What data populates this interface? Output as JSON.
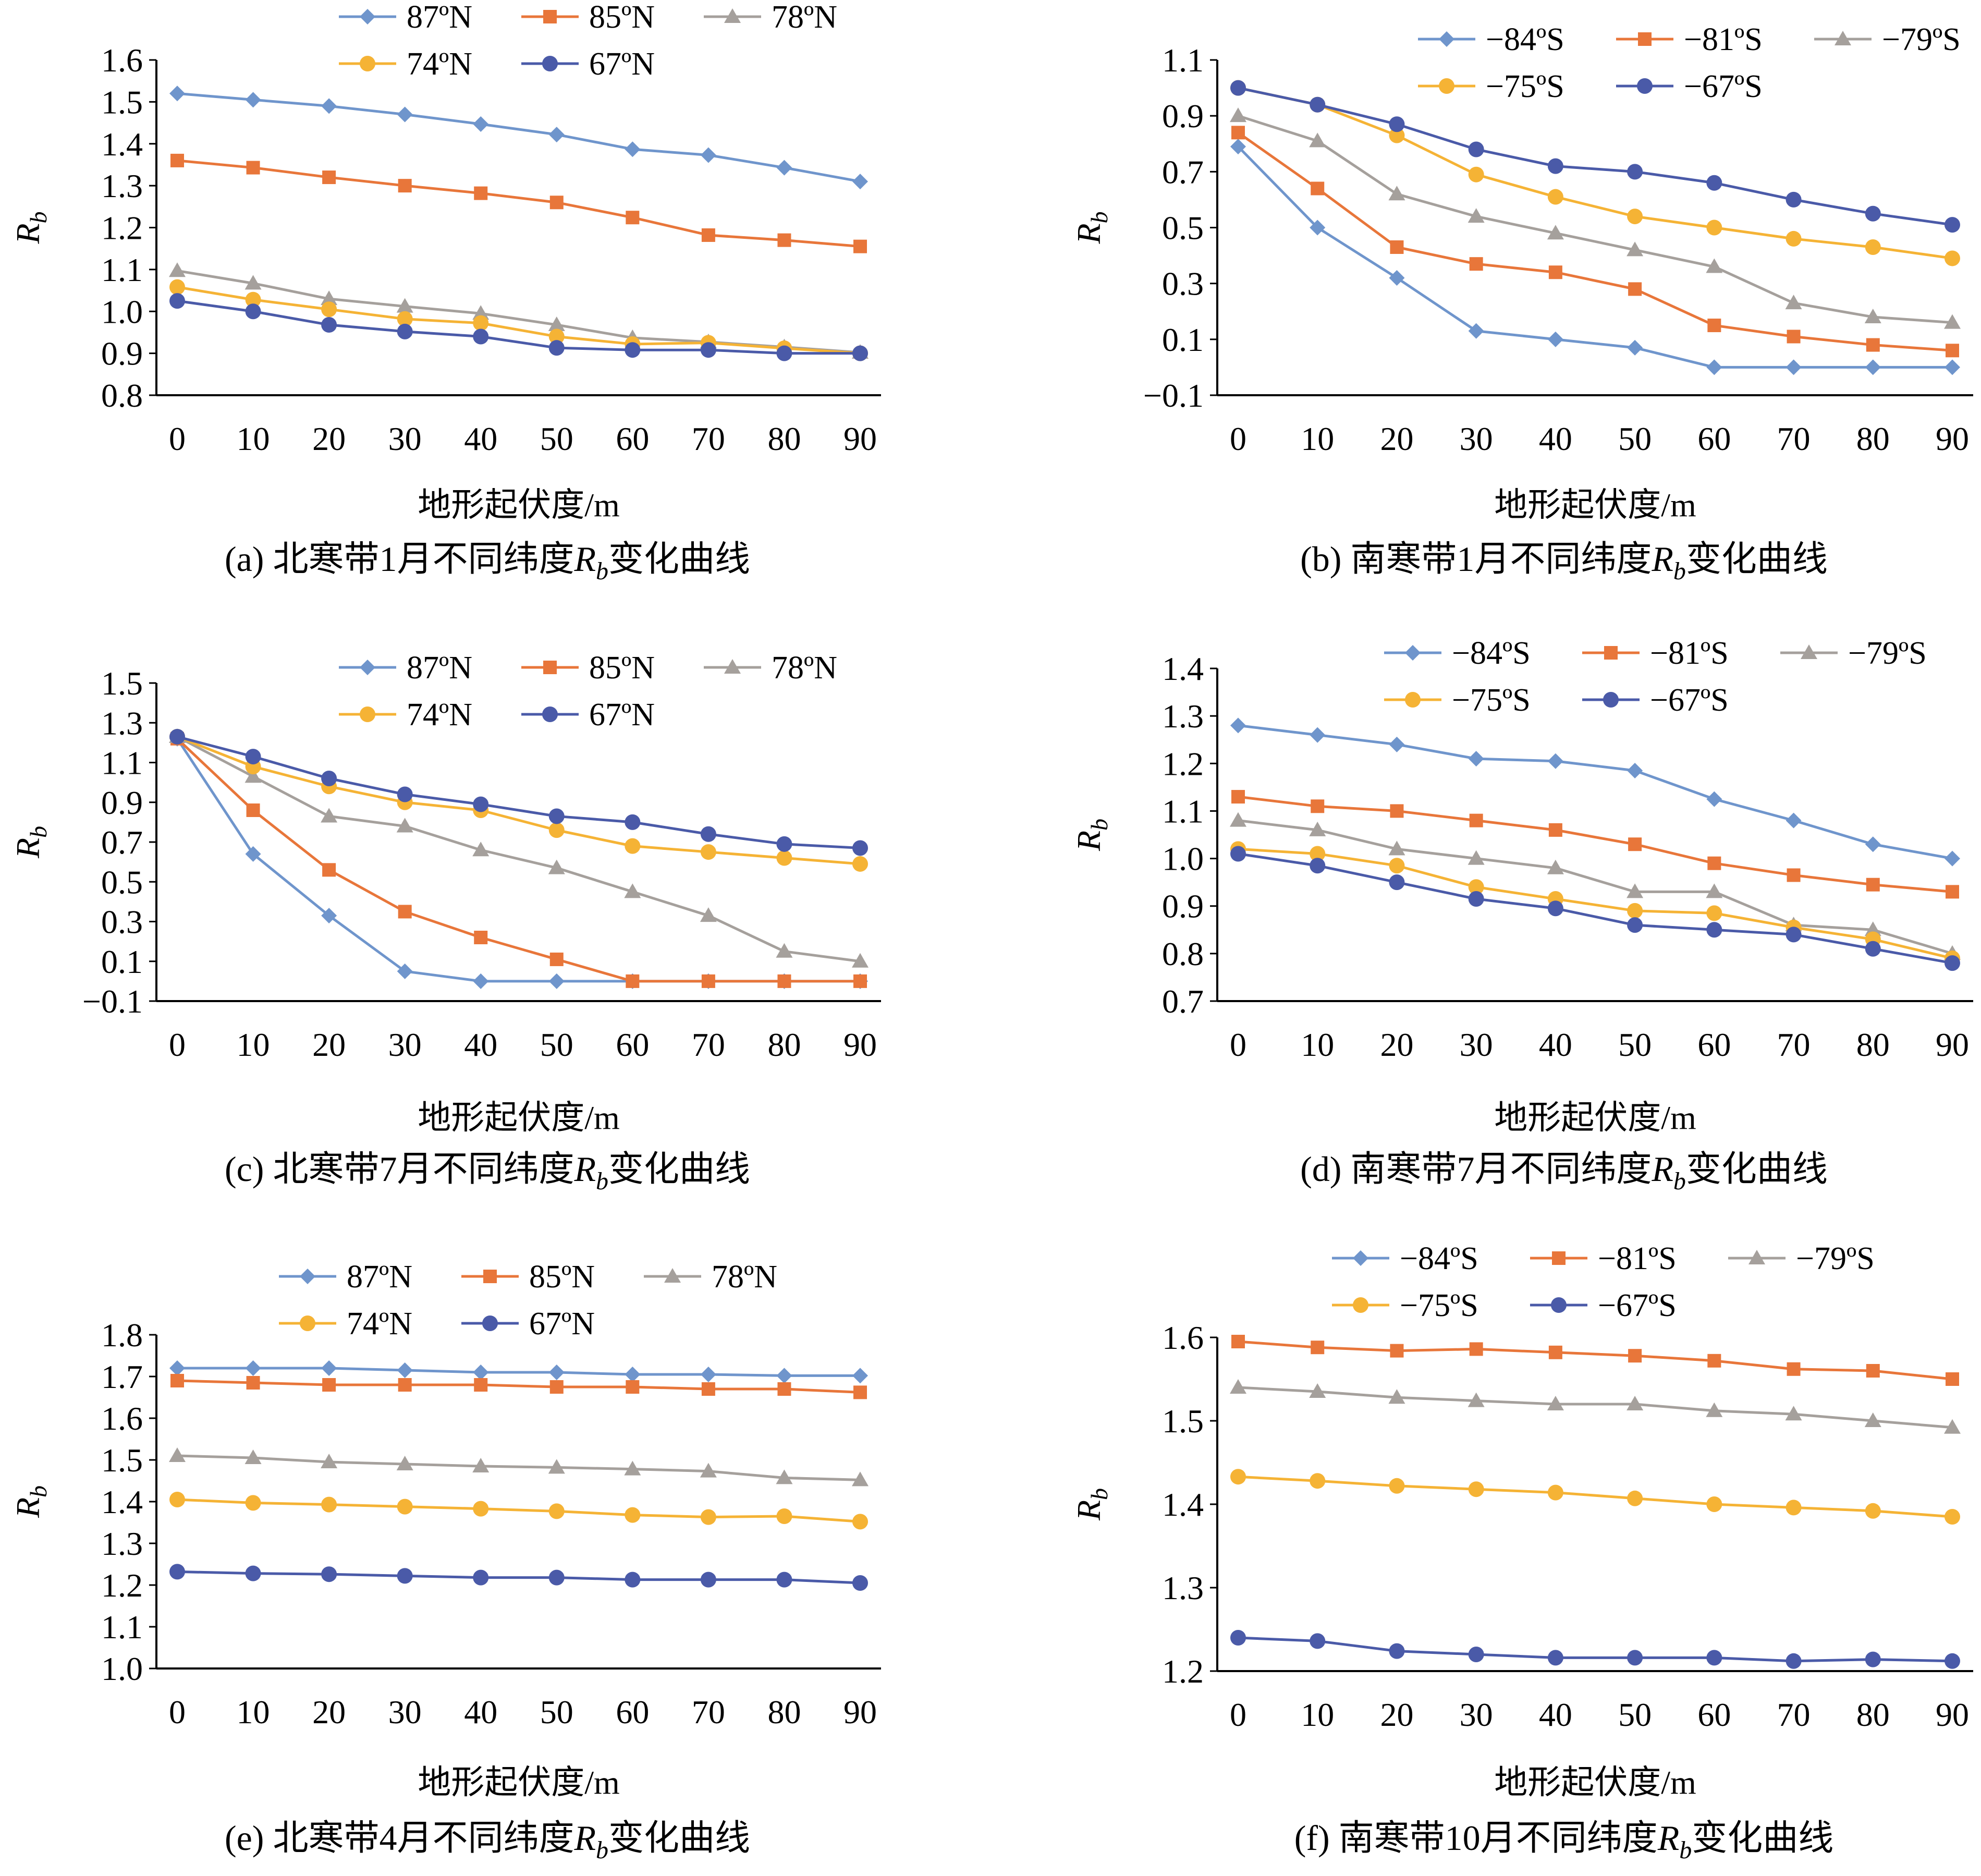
{
  "colors": {
    "blue": "#6F95CC",
    "orange": "#E8763A",
    "gray": "#A5A09C",
    "yellow": "#F5B335",
    "navy": "#4A5AA8"
  },
  "chart_data": [
    {
      "id": "a",
      "type": "line",
      "caption_pre": "(a) 北寒带1月不同纬度",
      "caption_var": "R",
      "caption_sub": "b",
      "caption_post": "变化曲线",
      "xlabel": "地形起伏度/m",
      "ylabel": "R",
      "ylabel_sub": "b",
      "x": [
        0,
        10,
        20,
        30,
        40,
        50,
        60,
        70,
        80,
        90
      ],
      "ylim": [
        0.8,
        1.6
      ],
      "yticks": [
        "0.8",
        "0.9",
        "1.0",
        "1.1",
        "1.2",
        "1.3",
        "1.4",
        "1.5",
        "1.6"
      ],
      "series": [
        {
          "name": "87ºN",
          "color": "blue",
          "marker": "diamond",
          "values": [
            1.52,
            1.505,
            1.49,
            1.47,
            1.447,
            1.422,
            1.387,
            1.373,
            1.343,
            1.31
          ]
        },
        {
          "name": "85ºN",
          "color": "orange",
          "marker": "square",
          "values": [
            1.36,
            1.343,
            1.32,
            1.3,
            1.282,
            1.26,
            1.224,
            1.182,
            1.17,
            1.155
          ]
        },
        {
          "name": "78ºN",
          "color": "gray",
          "marker": "triangle",
          "values": [
            1.097,
            1.067,
            1.03,
            1.012,
            0.995,
            0.968,
            0.937,
            0.927,
            0.915,
            0.902
          ]
        },
        {
          "name": "74ºN",
          "color": "yellow",
          "marker": "circle",
          "values": [
            1.058,
            1.028,
            1.005,
            0.982,
            0.972,
            0.94,
            0.922,
            0.925,
            0.912,
            0.9
          ]
        },
        {
          "name": "67ºN",
          "color": "navy",
          "marker": "circle",
          "values": [
            1.025,
            1.0,
            0.968,
            0.952,
            0.94,
            0.913,
            0.908,
            0.908,
            0.9,
            0.9
          ]
        }
      ]
    },
    {
      "id": "b",
      "type": "line",
      "caption_pre": "(b) 南寒带1月不同纬度",
      "caption_var": "R",
      "caption_sub": "b",
      "caption_post": "变化曲线",
      "xlabel": "地形起伏度/m",
      "ylabel": "R",
      "ylabel_sub": "b",
      "x": [
        0,
        10,
        20,
        30,
        40,
        50,
        60,
        70,
        80,
        90
      ],
      "ylim": [
        -0.1,
        1.1
      ],
      "yticks": [
        "−0.1",
        "0.1",
        "0.3",
        "0.5",
        "0.7",
        "0.9",
        "1.1"
      ],
      "series": [
        {
          "name": "−84ºS",
          "color": "blue",
          "marker": "diamond",
          "values": [
            0.79,
            0.5,
            0.32,
            0.13,
            0.1,
            0.07,
            0.0,
            0.0,
            0.0,
            0.0
          ]
        },
        {
          "name": "−81ºS",
          "color": "orange",
          "marker": "square",
          "values": [
            0.84,
            0.64,
            0.43,
            0.37,
            0.34,
            0.28,
            0.15,
            0.11,
            0.08,
            0.06
          ]
        },
        {
          "name": "−79ºS",
          "color": "gray",
          "marker": "triangle",
          "values": [
            0.9,
            0.81,
            0.62,
            0.54,
            0.48,
            0.42,
            0.36,
            0.23,
            0.18,
            0.16
          ]
        },
        {
          "name": "−75ºS",
          "color": "yellow",
          "marker": "circle",
          "values": [
            1.0,
            0.94,
            0.83,
            0.69,
            0.61,
            0.54,
            0.5,
            0.46,
            0.43,
            0.39
          ]
        },
        {
          "name": "−67ºS",
          "color": "navy",
          "marker": "circle",
          "values": [
            1.0,
            0.94,
            0.87,
            0.78,
            0.72,
            0.7,
            0.66,
            0.6,
            0.55,
            0.51
          ]
        }
      ]
    },
    {
      "id": "c",
      "type": "line",
      "caption_pre": "(c) 北寒带7月不同纬度",
      "caption_var": "R",
      "caption_sub": "b",
      "caption_post": "变化曲线",
      "xlabel": "地形起伏度/m",
      "ylabel": "R",
      "ylabel_sub": "b",
      "x": [
        0,
        10,
        20,
        30,
        40,
        50,
        60,
        70,
        80,
        90
      ],
      "ylim": [
        -0.1,
        1.5
      ],
      "yticks": [
        "−0.1",
        "0.1",
        "0.3",
        "0.5",
        "0.7",
        "0.9",
        "1.1",
        "1.3",
        "1.5"
      ],
      "series": [
        {
          "name": "87ºN",
          "color": "blue",
          "marker": "diamond",
          "values": [
            1.22,
            0.64,
            0.33,
            0.05,
            0.0,
            0.0,
            0.0,
            0.0,
            0.0,
            0.0
          ]
        },
        {
          "name": "85ºN",
          "color": "orange",
          "marker": "square",
          "values": [
            1.22,
            0.86,
            0.56,
            0.35,
            0.22,
            0.11,
            0.0,
            0.0,
            0.0,
            0.0
          ]
        },
        {
          "name": "78ºN",
          "color": "gray",
          "marker": "triangle",
          "values": [
            1.23,
            1.03,
            0.83,
            0.78,
            0.66,
            0.57,
            0.45,
            0.33,
            0.15,
            0.1
          ]
        },
        {
          "name": "74ºN",
          "color": "yellow",
          "marker": "circle",
          "values": [
            1.23,
            1.08,
            0.98,
            0.9,
            0.86,
            0.76,
            0.68,
            0.65,
            0.62,
            0.59
          ]
        },
        {
          "name": "67ºN",
          "color": "navy",
          "marker": "circle",
          "values": [
            1.23,
            1.13,
            1.02,
            0.94,
            0.89,
            0.83,
            0.8,
            0.74,
            0.69,
            0.67
          ]
        }
      ]
    },
    {
      "id": "d",
      "type": "line",
      "caption_pre": "(d) 南寒带7月不同纬度",
      "caption_var": "R",
      "caption_sub": "b",
      "caption_post": "变化曲线",
      "xlabel": "地形起伏度/m",
      "ylabel": "R",
      "ylabel_sub": "b",
      "x": [
        0,
        10,
        20,
        30,
        40,
        50,
        60,
        70,
        80,
        90
      ],
      "ylim": [
        0.7,
        1.4
      ],
      "yticks": [
        "0.7",
        "0.8",
        "0.9",
        "1.0",
        "1.1",
        "1.2",
        "1.3",
        "1.4"
      ],
      "series": [
        {
          "name": "−84ºS",
          "color": "blue",
          "marker": "diamond",
          "values": [
            1.28,
            1.26,
            1.24,
            1.21,
            1.205,
            1.185,
            1.125,
            1.08,
            1.03,
            1.0
          ]
        },
        {
          "name": "−81ºS",
          "color": "orange",
          "marker": "square",
          "values": [
            1.13,
            1.11,
            1.1,
            1.08,
            1.06,
            1.03,
            0.99,
            0.965,
            0.945,
            0.93
          ]
        },
        {
          "name": "−79ºS",
          "color": "gray",
          "marker": "triangle",
          "values": [
            1.08,
            1.06,
            1.02,
            1.0,
            0.98,
            0.93,
            0.93,
            0.86,
            0.85,
            0.8
          ]
        },
        {
          "name": "−75ºS",
          "color": "yellow",
          "marker": "circle",
          "values": [
            1.02,
            1.01,
            0.985,
            0.94,
            0.915,
            0.89,
            0.885,
            0.855,
            0.83,
            0.79
          ]
        },
        {
          "name": "−67ºS",
          "color": "navy",
          "marker": "circle",
          "values": [
            1.01,
            0.985,
            0.95,
            0.915,
            0.895,
            0.86,
            0.85,
            0.84,
            0.81,
            0.78
          ]
        }
      ]
    },
    {
      "id": "e",
      "type": "line",
      "caption_pre": "(e) 北寒带4月不同纬度",
      "caption_var": "R",
      "caption_sub": "b",
      "caption_post": "变化曲线",
      "xlabel": "地形起伏度/m",
      "ylabel": "R",
      "ylabel_sub": "b",
      "x": [
        0,
        10,
        20,
        30,
        40,
        50,
        60,
        70,
        80,
        90
      ],
      "ylim": [
        1.0,
        1.8
      ],
      "yticks": [
        "1.0",
        "1.1",
        "1.2",
        "1.3",
        "1.4",
        "1.5",
        "1.6",
        "1.7",
        "1.8"
      ],
      "series": [
        {
          "name": "87ºN",
          "color": "blue",
          "marker": "diamond",
          "values": [
            1.72,
            1.72,
            1.72,
            1.715,
            1.71,
            1.71,
            1.705,
            1.705,
            1.702,
            1.702
          ]
        },
        {
          "name": "85ºN",
          "color": "orange",
          "marker": "square",
          "values": [
            1.69,
            1.685,
            1.68,
            1.68,
            1.68,
            1.675,
            1.675,
            1.67,
            1.67,
            1.662
          ]
        },
        {
          "name": "78ºN",
          "color": "gray",
          "marker": "triangle",
          "values": [
            1.51,
            1.505,
            1.495,
            1.49,
            1.485,
            1.482,
            1.478,
            1.473,
            1.457,
            1.452
          ]
        },
        {
          "name": "74ºN",
          "color": "yellow",
          "marker": "circle",
          "values": [
            1.405,
            1.397,
            1.393,
            1.388,
            1.383,
            1.377,
            1.368,
            1.363,
            1.365,
            1.352
          ]
        },
        {
          "name": "67ºN",
          "color": "navy",
          "marker": "circle",
          "values": [
            1.232,
            1.228,
            1.226,
            1.222,
            1.218,
            1.218,
            1.213,
            1.213,
            1.213,
            1.205
          ]
        }
      ]
    },
    {
      "id": "f",
      "type": "line",
      "caption_pre": "(f) 南寒带10月不同纬度",
      "caption_var": "R",
      "caption_sub": "b",
      "caption_post": "变化曲线",
      "xlabel": "地形起伏度/m",
      "ylabel": "R",
      "ylabel_sub": "b",
      "x": [
        0,
        10,
        20,
        30,
        40,
        50,
        60,
        70,
        80,
        90
      ],
      "ylim": [
        1.2,
        1.6
      ],
      "yticks": [
        "1.2",
        "1.3",
        "1.4",
        "1.5",
        "1.6"
      ],
      "series": [
        {
          "name": "−84ºS",
          "color": "blue",
          "marker": "diamond",
          "values": [
            null,
            null,
            null,
            null,
            null,
            null,
            null,
            null,
            null,
            null
          ]
        },
        {
          "name": "−81ºS",
          "color": "orange",
          "marker": "square",
          "values": [
            1.595,
            1.588,
            1.584,
            1.586,
            1.582,
            1.578,
            1.572,
            1.562,
            1.56,
            1.55
          ]
        },
        {
          "name": "−79ºS",
          "color": "gray",
          "marker": "triangle",
          "values": [
            1.54,
            1.535,
            1.528,
            1.524,
            1.52,
            1.52,
            1.512,
            1.508,
            1.5,
            1.492
          ]
        },
        {
          "name": "−75ºS",
          "color": "yellow",
          "marker": "circle",
          "values": [
            1.433,
            1.428,
            1.422,
            1.418,
            1.414,
            1.407,
            1.4,
            1.396,
            1.392,
            1.385
          ]
        },
        {
          "name": "−67ºS",
          "color": "navy",
          "marker": "circle",
          "values": [
            1.24,
            1.236,
            1.224,
            1.22,
            1.216,
            1.216,
            1.216,
            1.212,
            1.214,
            1.212
          ]
        }
      ]
    }
  ]
}
